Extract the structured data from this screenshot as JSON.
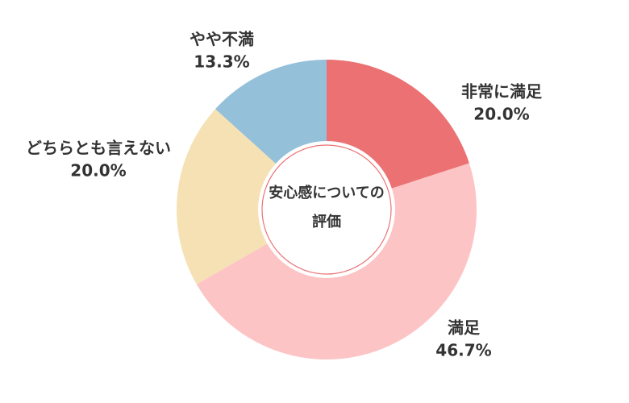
{
  "chart_data": {
    "type": "donut",
    "title": "安心感についての評価",
    "categories": [
      "非常に満足",
      "満足",
      "どちらとも言えない",
      "やや不満"
    ],
    "values": [
      20.0,
      46.7,
      20.0,
      13.3
    ],
    "value_labels": [
      "20.0%",
      "46.7%",
      "20.0%",
      "13.3%"
    ],
    "colors": [
      "#eb7173",
      "#fdc4c6",
      "#f5e1b4",
      "#95c0d9"
    ]
  }
}
